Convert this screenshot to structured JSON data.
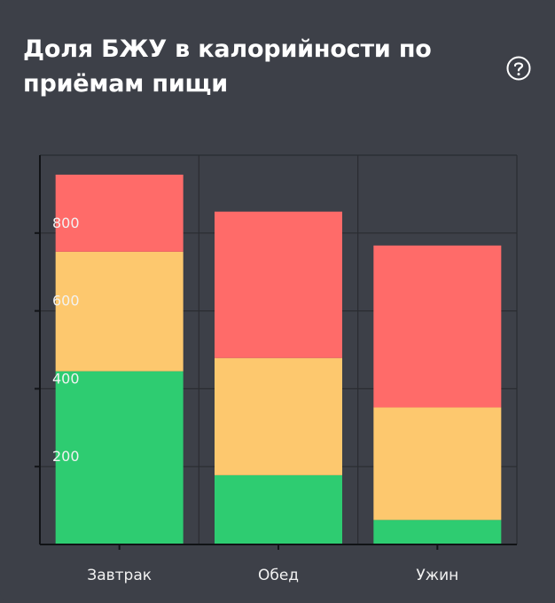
{
  "card": {
    "title": "Доля БЖУ в калорийности по приёмам пищи",
    "help_icon": "question-circle-icon"
  },
  "chart_data": {
    "type": "bar",
    "stacked": true,
    "categories": [
      "Завтрак",
      "Обед",
      "Ужин"
    ],
    "series": [
      {
        "values": [
          445,
          178,
          63
        ],
        "color": "#2ecc71"
      },
      {
        "values": [
          307,
          301,
          289
        ],
        "color": "#fdc86e"
      },
      {
        "values": [
          198,
          376,
          416
        ],
        "color": "#ff6b69"
      }
    ],
    "y_ticks": [
      200,
      400,
      600,
      800
    ],
    "ylim": [
      0,
      1000
    ],
    "grid": true,
    "legend": false
  }
}
